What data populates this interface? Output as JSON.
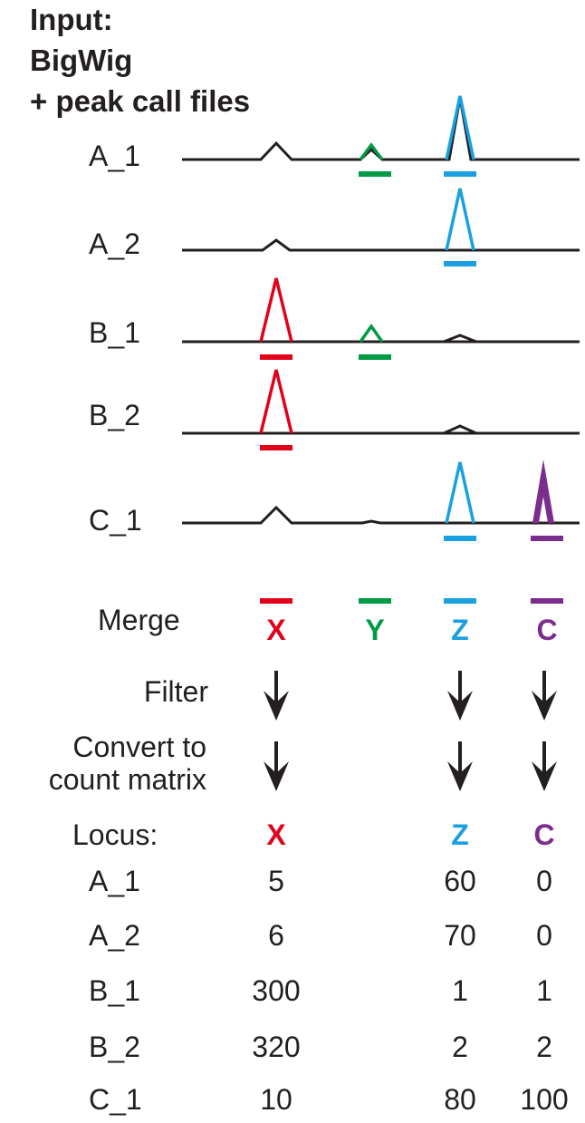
{
  "title": {
    "line1": "Input:",
    "line2": "BigWig",
    "line3": "+ peak call files"
  },
  "tracks": [
    {
      "label": "A_1"
    },
    {
      "label": "A_2"
    },
    {
      "label": "B_1"
    },
    {
      "label": "B_2"
    },
    {
      "label": "C_1"
    }
  ],
  "steps": {
    "merge": "Merge",
    "filter": "Filter",
    "convert_line1": "Convert to",
    "convert_line2": "count matrix"
  },
  "loci": [
    {
      "name": "X",
      "color": "#e3001b"
    },
    {
      "name": "Y",
      "color": "#009a44"
    },
    {
      "name": "Z",
      "color": "#1aa0e0"
    },
    {
      "name": "C",
      "color": "#7b2d8e"
    }
  ],
  "table": {
    "header_label": "Locus:",
    "columns": [
      "X",
      "Z",
      "C"
    ],
    "rows": [
      {
        "label": "A_1",
        "values": [
          "5",
          "60",
          "0"
        ]
      },
      {
        "label": "A_2",
        "values": [
          "6",
          "70",
          "0"
        ]
      },
      {
        "label": "B_1",
        "values": [
          "300",
          "1",
          "1"
        ]
      },
      {
        "label": "B_2",
        "values": [
          "320",
          "2",
          "2"
        ]
      },
      {
        "label": "C_1",
        "values": [
          "10",
          "80",
          "100"
        ]
      }
    ]
  },
  "colors": {
    "signal_line": "#231f20",
    "arrow": "#231f20"
  }
}
